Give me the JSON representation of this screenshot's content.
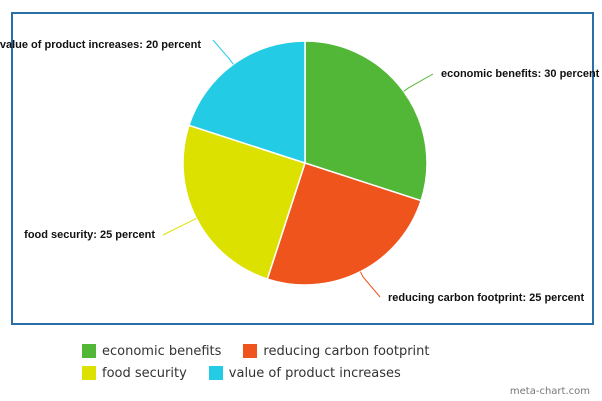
{
  "chart_data": {
    "type": "pie",
    "slices": [
      {
        "name": "economic benefits",
        "value": 30,
        "label": "economic benefits: 30 percent",
        "color": "#52b636"
      },
      {
        "name": "reducing carbon footprint",
        "value": 25,
        "label": "reducing carbon footprint: 25 percent",
        "color": "#ef541d"
      },
      {
        "name": "food security",
        "value": 25,
        "label": "food security: 25 percent",
        "color": "#dde100"
      },
      {
        "name": "value of product increases",
        "value": 20,
        "label": "value of product increases: 20 percent",
        "color": "#24cbe5"
      }
    ],
    "legend_position": "bottom-left",
    "frame_color": "#2a6fa8"
  },
  "watermark": "meta-chart.com"
}
